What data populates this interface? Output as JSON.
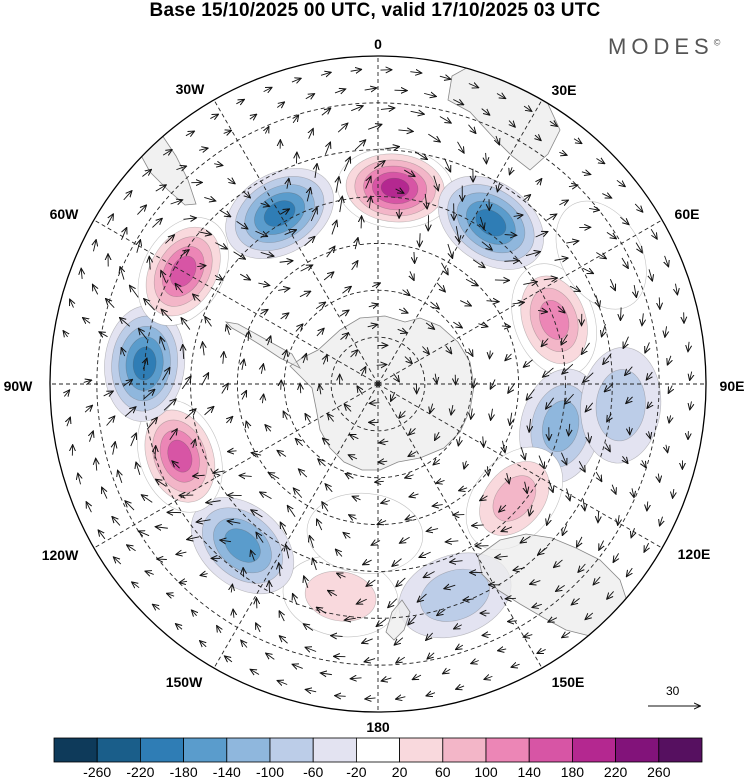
{
  "title": "Base 15/10/2025 00 UTC, valid 17/10/2025 03 UTC",
  "brand": "MODES",
  "brand_mark": "©",
  "longitude_labels": [
    "0",
    "30E",
    "60E",
    "90E",
    "120E",
    "150E",
    "180",
    "150W",
    "120W",
    "90W",
    "60W",
    "30W"
  ],
  "reference_vector": "30",
  "colorbar": {
    "ticks": [
      "-260",
      "-220",
      "-180",
      "-140",
      "-100",
      "-60",
      "-20",
      "20",
      "60",
      "100",
      "140",
      "180",
      "220",
      "260"
    ],
    "colors": [
      "#0e3a5a",
      "#1a5e8a",
      "#2f7db5",
      "#5a9ccc",
      "#8fb7dd",
      "#bccde8",
      "#e3e3f1",
      "#ffffff",
      "#f9d9dd",
      "#f3b6c8",
      "#ec86b6",
      "#d755a5",
      "#b42890",
      "#82137a",
      "#561060"
    ]
  },
  "anomalies": [
    {
      "lat": -48,
      "lon": 5,
      "value": 240
    },
    {
      "lat": -48,
      "lon": 35,
      "value": -210
    },
    {
      "lat": -50,
      "lon": 70,
      "value": 150
    },
    {
      "lat": -50,
      "lon": 103,
      "value": -120
    },
    {
      "lat": -52,
      "lon": 130,
      "value": 120
    },
    {
      "lat": -42,
      "lon": 160,
      "value": -90
    },
    {
      "lat": -44,
      "lon": 190,
      "value": 90
    },
    {
      "lat": -45,
      "lon": 220,
      "value": -170
    },
    {
      "lat": -45,
      "lon": 250,
      "value": 190
    },
    {
      "lat": -40,
      "lon": 275,
      "value": -210
    },
    {
      "lat": -42,
      "lon": 300,
      "value": 190
    },
    {
      "lat": -48,
      "lon": 330,
      "value": -190
    },
    {
      "lat": -38,
      "lon": 95,
      "value": -70
    },
    {
      "lat": -58,
      "lon": 185,
      "value": 40
    },
    {
      "lat": -35,
      "lon": 60,
      "value": 50
    }
  ]
}
